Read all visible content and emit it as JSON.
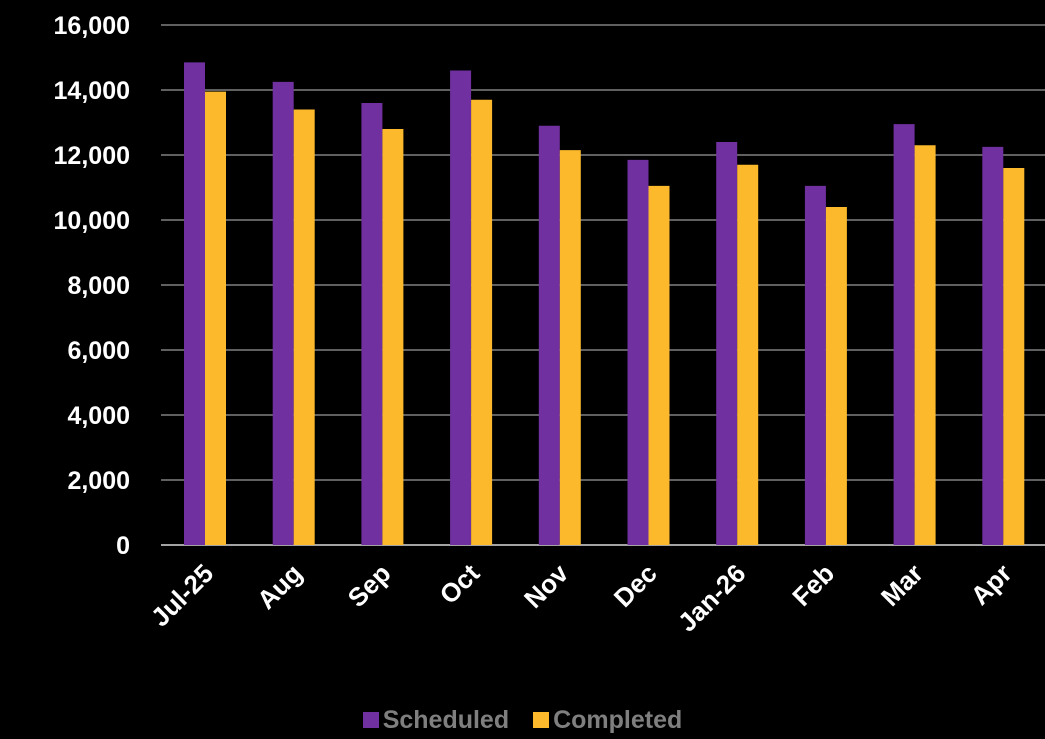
{
  "chart_data": {
    "type": "bar",
    "categories": [
      "Jul-25",
      "Aug",
      "Sep",
      "Oct",
      "Nov",
      "Dec",
      "Jan-26",
      "Feb",
      "Mar",
      "Apr"
    ],
    "series": [
      {
        "name": "Scheduled",
        "color": "#7030a0",
        "values": [
          14850,
          14250,
          13600,
          14600,
          12900,
          11850,
          12400,
          11050,
          12950,
          12250
        ]
      },
      {
        "name": "Completed",
        "color": "#fbb92b",
        "values": [
          13950,
          13400,
          12800,
          13700,
          12150,
          11050,
          11700,
          10400,
          12300,
          11600
        ]
      }
    ],
    "y_ticks": [
      "0",
      "2,000",
      "4,000",
      "6,000",
      "8,000",
      "10,000",
      "12,000",
      "14,000",
      "16,000"
    ],
    "ylim": [
      0,
      16000
    ],
    "grid": true,
    "legend_position": "bottom",
    "background": "#000000",
    "text_color": "#ffffff",
    "legend_text_color": "#7f7f7f"
  }
}
